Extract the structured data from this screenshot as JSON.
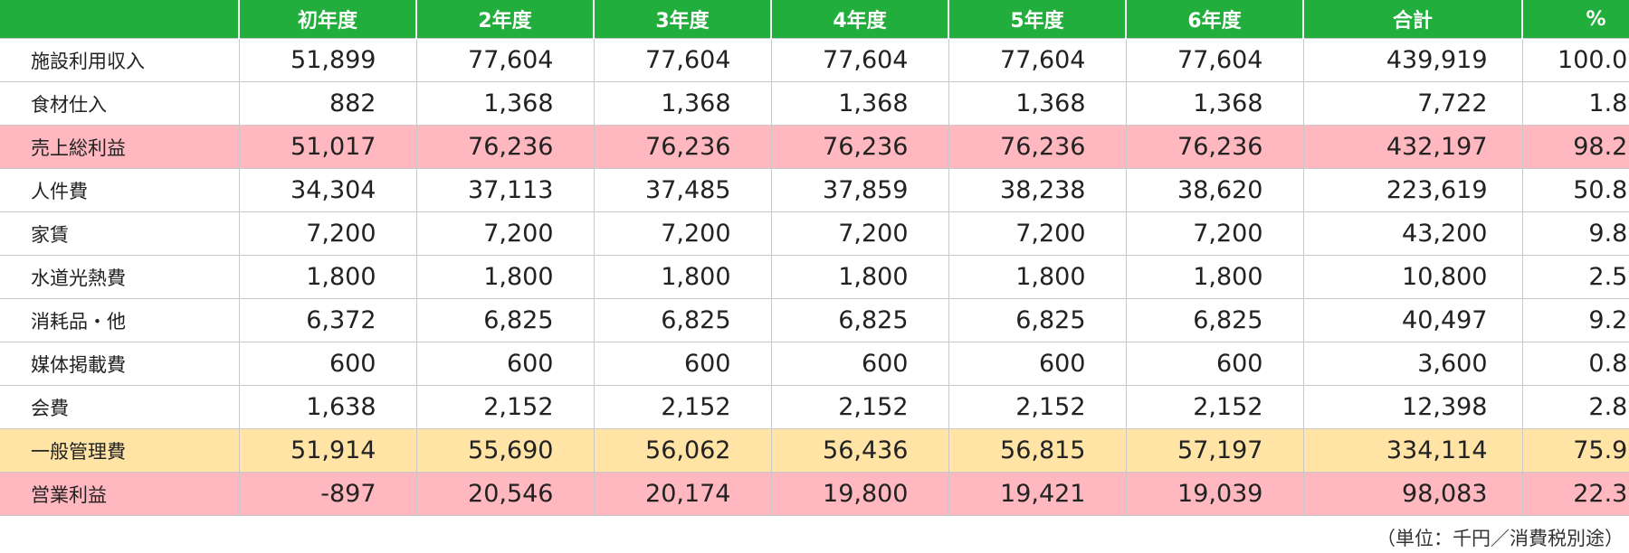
{
  "table": {
    "headers": [
      "",
      "初年度",
      "2年度",
      "3年度",
      "4年度",
      "5年度",
      "6年度",
      "合計",
      "%"
    ],
    "rows": [
      {
        "label": "施設利用収入",
        "highlight": "",
        "values": [
          "51,899",
          "77,604",
          "77,604",
          "77,604",
          "77,604",
          "77,604",
          "439,919",
          "100.0%"
        ]
      },
      {
        "label": "食材仕入",
        "highlight": "",
        "values": [
          "882",
          "1,368",
          "1,368",
          "1,368",
          "1,368",
          "1,368",
          "7,722",
          "1.8%"
        ]
      },
      {
        "label": "売上総利益",
        "highlight": "pink",
        "values": [
          "51,017",
          "76,236",
          "76,236",
          "76,236",
          "76,236",
          "76,236",
          "432,197",
          "98.2%"
        ]
      },
      {
        "label": "人件費",
        "highlight": "",
        "values": [
          "34,304",
          "37,113",
          "37,485",
          "37,859",
          "38,238",
          "38,620",
          "223,619",
          "50.8%"
        ]
      },
      {
        "label": "家賃",
        "highlight": "",
        "values": [
          "7,200",
          "7,200",
          "7,200",
          "7,200",
          "7,200",
          "7,200",
          "43,200",
          "9.8%"
        ]
      },
      {
        "label": "水道光熱費",
        "highlight": "",
        "values": [
          "1,800",
          "1,800",
          "1,800",
          "1,800",
          "1,800",
          "1,800",
          "10,800",
          "2.5%"
        ]
      },
      {
        "label": "消耗品・他",
        "highlight": "",
        "values": [
          "6,372",
          "6,825",
          "6,825",
          "6,825",
          "6,825",
          "6,825",
          "40,497",
          "9.2%"
        ]
      },
      {
        "label": "媒体掲載費",
        "highlight": "",
        "values": [
          "600",
          "600",
          "600",
          "600",
          "600",
          "600",
          "3,600",
          "0.8%"
        ]
      },
      {
        "label": "会費",
        "highlight": "",
        "values": [
          "1,638",
          "2,152",
          "2,152",
          "2,152",
          "2,152",
          "2,152",
          "12,398",
          "2.8%"
        ]
      },
      {
        "label": "一般管理費",
        "highlight": "yellow",
        "values": [
          "51,914",
          "55,690",
          "56,062",
          "56,436",
          "56,815",
          "57,197",
          "334,114",
          "75.9%"
        ]
      },
      {
        "label": "営業利益",
        "highlight": "pink",
        "values": [
          "-897",
          "20,546",
          "20,174",
          "19,800",
          "19,421",
          "19,039",
          "98,083",
          "22.3%"
        ]
      }
    ]
  },
  "colors": {
    "header_bg": "#22ae3d",
    "highlight_pink": "#ffb8bf",
    "highlight_yellow": "#ffe4a6"
  },
  "footnote": "（単位：千円／消費税別途）"
}
